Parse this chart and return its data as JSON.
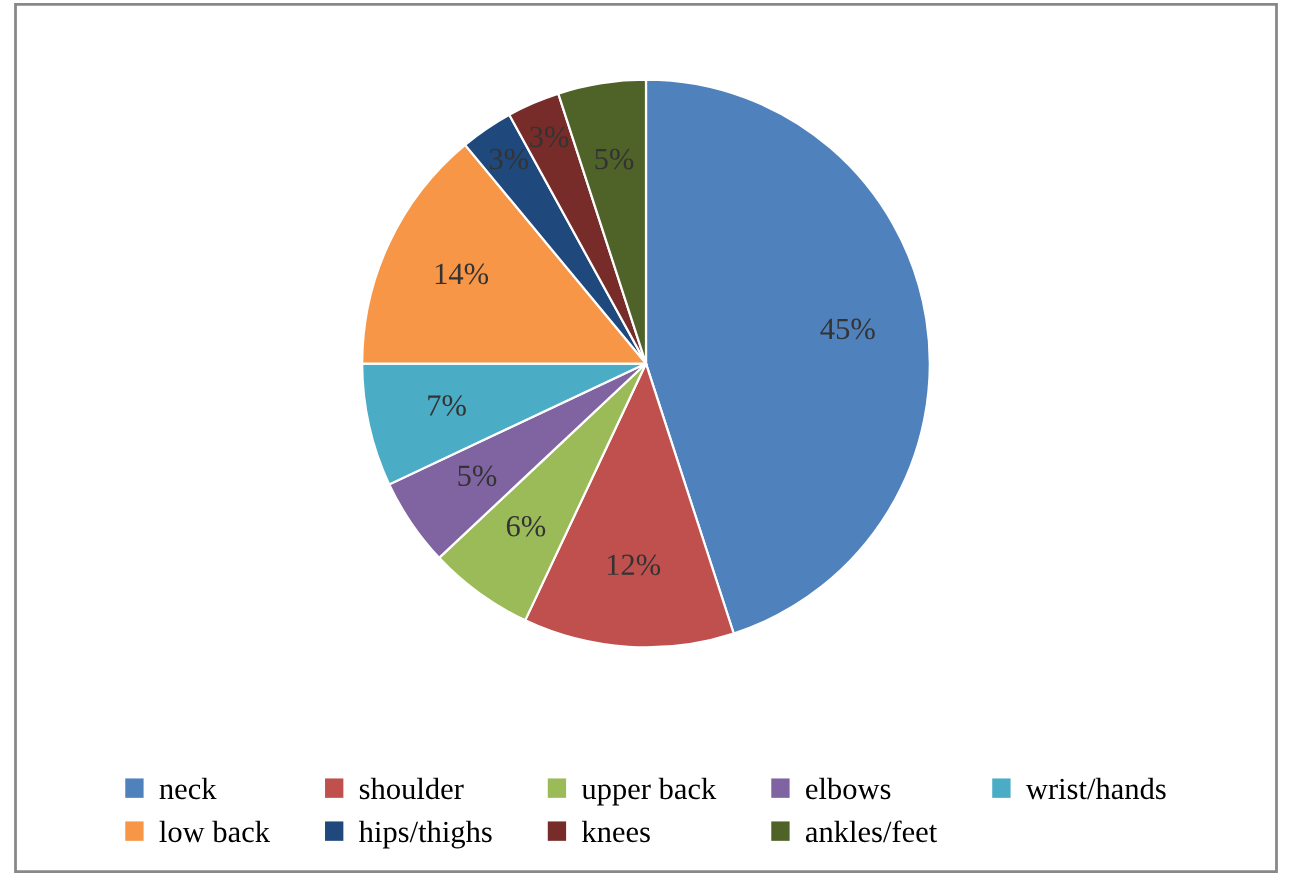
{
  "chart_data": {
    "type": "pie",
    "categories": [
      "neck",
      "shoulder",
      "upper back",
      "elbows",
      "wrist/hands",
      "low back",
      "hips/thighs",
      "knees",
      "ankles/feet"
    ],
    "values": [
      45,
      12,
      6,
      5,
      7,
      14,
      3,
      3,
      5
    ],
    "value_labels": [
      "45%",
      "12%",
      "6%",
      "5%",
      "7%",
      "14%",
      "3%",
      "3%",
      "5%"
    ],
    "colors": [
      "#4f81bd",
      "#c0504d",
      "#9bbb59",
      "#8064a2",
      "#4bacc6",
      "#f79646",
      "#1f497d",
      "#772c2a",
      "#4f6228"
    ],
    "legend": "bottom"
  }
}
